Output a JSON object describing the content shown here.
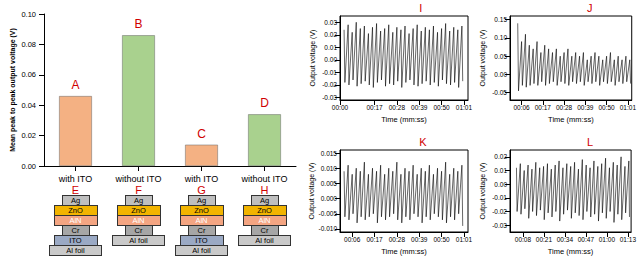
{
  "chart_data": [
    {
      "type": "bar",
      "y_label": "Mean peak to peak output voltage (V)",
      "categories": [
        "with ITO",
        "without ITO",
        "with ITO",
        "without ITO"
      ],
      "values": [
        0.046,
        0.086,
        0.014,
        0.034
      ],
      "colors": [
        "#f4b183",
        "#a9d18e",
        "#f4b183",
        "#a9d18e"
      ],
      "bar_letters": [
        "A",
        "B",
        "C",
        "D"
      ],
      "ylim": [
        0,
        0.1
      ],
      "yticks": [
        {
          "value": 0,
          "label": "0.00"
        },
        0.02,
        0.04,
        0.06,
        0.08,
        {
          "value": 0.1,
          "label": "0.10"
        }
      ],
      "grid": false
    },
    {
      "type": "line",
      "panel_label": "I",
      "x_label": "Time (mm:ss)",
      "y_label": "Output voltage (V)",
      "color": "#000000",
      "x": [
        2,
        2.4,
        4,
        4.4,
        6,
        6.4,
        8,
        8.4,
        10,
        10.4,
        12,
        12.4,
        14,
        14.4,
        16,
        16.4,
        18,
        18.4,
        20,
        20.4,
        22,
        22.4,
        24,
        24.4,
        26,
        26.4,
        28,
        28.4,
        30,
        30.4,
        32,
        32.4,
        34,
        34.4,
        36,
        36.4,
        38,
        38.4,
        40,
        40.4,
        42,
        42.4,
        44,
        44.4,
        46,
        46.4,
        48,
        48.4,
        50,
        50.4,
        52,
        52.4,
        54,
        54.4,
        56,
        56.4,
        58,
        58.4,
        60,
        60.4
      ],
      "values": [
        0.024,
        -0.018,
        0.028,
        -0.02,
        0.022,
        -0.016,
        0.03,
        -0.021,
        0.025,
        -0.019,
        0.027,
        -0.017,
        0.021,
        -0.02,
        0.026,
        -0.022,
        0.029,
        -0.018,
        0.023,
        -0.016,
        0.025,
        -0.021,
        0.028,
        -0.019,
        0.022,
        -0.02,
        0.026,
        -0.017,
        0.024,
        -0.022,
        0.027,
        -0.018,
        0.021,
        -0.016,
        0.025,
        -0.02,
        0.028,
        -0.021,
        0.023,
        -0.019,
        0.026,
        -0.017,
        0.024,
        -0.02,
        0.027,
        -0.018,
        0.022,
        -0.021,
        0.025,
        -0.016,
        0.029,
        -0.019,
        0.023,
        -0.02,
        0.026,
        -0.018,
        0.024,
        -0.022,
        0.027,
        -0.017
      ],
      "xlim": [
        0,
        63
      ],
      "xticks": [
        {
          "value": 0,
          "label": "00:00"
        },
        {
          "value": 17,
          "label": "00:17"
        },
        {
          "value": 28,
          "label": "00:28"
        },
        {
          "value": 39,
          "label": "00:39"
        },
        {
          "value": 50,
          "label": "00:50"
        },
        {
          "value": 61,
          "label": "01:01"
        }
      ],
      "ylim": [
        -0.032,
        0.035
      ],
      "yticks": [
        -0.03,
        -0.02,
        -0.01,
        {
          "value": 0,
          "label": "0.00"
        },
        0.01,
        0.02,
        0.03
      ],
      "grid": false
    },
    {
      "type": "line",
      "panel_label": "J",
      "x_label": "Time (mm:ss)",
      "y_label": "Output voltage (V)",
      "color": "#000000",
      "x": [
        4,
        4.4,
        6,
        6.4,
        8,
        8.4,
        10,
        10.4,
        12,
        12.4,
        14,
        14.4,
        16,
        16.4,
        18,
        18.4,
        20,
        20.4,
        22,
        22.4,
        24,
        24.4,
        26,
        26.4,
        28,
        28.4,
        30,
        30.4,
        32,
        32.4,
        34,
        34.4,
        36,
        36.4,
        38,
        38.4,
        40,
        40.4,
        42,
        42.4,
        44,
        44.4,
        46,
        46.4,
        48,
        48.4,
        50,
        50.4,
        52,
        52.4,
        54,
        54.4,
        56,
        56.4,
        58,
        58.4,
        60,
        60.4,
        62,
        62.4
      ],
      "values": [
        0.14,
        -0.045,
        0.09,
        -0.03,
        0.11,
        -0.035,
        0.08,
        -0.03,
        0.07,
        -0.025,
        0.09,
        -0.03,
        0.06,
        -0.02,
        0.08,
        -0.03,
        0.07,
        -0.025,
        0.06,
        -0.02,
        0.07,
        -0.03,
        0.05,
        -0.02,
        0.06,
        -0.025,
        0.07,
        -0.03,
        0.05,
        -0.02,
        0.06,
        -0.025,
        0.05,
        -0.02,
        0.06,
        -0.03,
        0.04,
        -0.02,
        0.05,
        -0.025,
        0.06,
        -0.02,
        0.05,
        -0.03,
        0.04,
        -0.02,
        0.05,
        -0.025,
        0.06,
        -0.02,
        0.04,
        -0.03,
        0.05,
        -0.02,
        0.04,
        -0.025,
        0.05,
        -0.02,
        0.04,
        -0.025
      ],
      "xlim": [
        0,
        63
      ],
      "xticks": [
        {
          "value": 6,
          "label": "00:06"
        },
        {
          "value": 17,
          "label": "00:17"
        },
        {
          "value": 28,
          "label": "00:28"
        },
        {
          "value": 39,
          "label": "00:39"
        },
        {
          "value": 50,
          "label": "00:50"
        },
        {
          "value": 61,
          "label": "01:01"
        }
      ],
      "ylim": [
        -0.07,
        0.16
      ],
      "yticks": [
        -0.05,
        {
          "value": 0,
          "label": "0.00"
        },
        0.05,
        {
          "value": 0.1,
          "label": "0.10"
        },
        0.15
      ],
      "grid": false
    },
    {
      "type": "line",
      "panel_label": "K",
      "x_label": "Time (mm:ss)",
      "y_label": "Output voltage (V)",
      "color": "#000000",
      "x": [
        2,
        2.4,
        4,
        4.4,
        6,
        6.4,
        8,
        8.4,
        10,
        10.4,
        12,
        12.4,
        14,
        14.4,
        16,
        16.4,
        18,
        18.4,
        20,
        20.4,
        22,
        22.4,
        24,
        24.4,
        26,
        26.4,
        28,
        28.4,
        30,
        30.4,
        32,
        32.4,
        34,
        34.4,
        36,
        36.4,
        38,
        38.4,
        40,
        40.4,
        42,
        42.4,
        44,
        44.4,
        46,
        46.4,
        48,
        48.4,
        50,
        50.4,
        52,
        52.4,
        54,
        54.4,
        56,
        56.4,
        58,
        58.4,
        60,
        60.4
      ],
      "values": [
        0.009,
        -0.006,
        0.011,
        -0.007,
        0.008,
        -0.005,
        0.01,
        -0.008,
        0.009,
        -0.006,
        0.012,
        -0.007,
        0.008,
        -0.006,
        0.01,
        -0.005,
        0.009,
        -0.008,
        0.011,
        -0.006,
        0.008,
        -0.007,
        0.01,
        -0.006,
        0.009,
        -0.005,
        0.012,
        -0.007,
        0.008,
        -0.008,
        0.01,
        -0.006,
        0.009,
        -0.007,
        0.011,
        -0.005,
        0.008,
        -0.006,
        0.01,
        -0.008,
        0.009,
        -0.006,
        0.011,
        -0.007,
        0.008,
        -0.005,
        0.01,
        -0.006,
        0.009,
        -0.007,
        0.012,
        -0.008,
        0.008,
        -0.006,
        0.01,
        -0.007,
        0.009,
        -0.005,
        0.011,
        -0.009
      ],
      "xlim": [
        0,
        63
      ],
      "xticks": [
        {
          "value": 6,
          "label": "00:06"
        },
        {
          "value": 17,
          "label": "00:17"
        },
        {
          "value": 28,
          "label": "00:28"
        },
        {
          "value": 39,
          "label": "00:39"
        },
        {
          "value": 50,
          "label": "00:50"
        },
        {
          "value": 61,
          "label": "01:01"
        }
      ],
      "ylim": [
        -0.011,
        0.016
      ],
      "yticks": [
        {
          "value": -0.01,
          "label": "-0.010"
        },
        -0.005,
        {
          "value": 0,
          "label": "0.000"
        },
        0.005,
        {
          "value": 0.01,
          "label": "0.010"
        },
        0.015
      ],
      "grid": false
    },
    {
      "type": "line",
      "panel_label": "L",
      "x_label": "Time (mm:ss)",
      "y_label": "Output voltage (V)",
      "color": "#000000",
      "x": [
        4,
        4.4,
        6.4,
        6.8,
        8.8,
        9.2,
        11.2,
        11.6,
        13.6,
        14,
        16,
        16.4,
        18.4,
        18.8,
        20.8,
        21.2,
        23.2,
        23.6,
        25.6,
        26,
        28,
        28.4,
        30.4,
        30.8,
        32.8,
        33.2,
        35.2,
        35.6,
        37.6,
        38,
        40,
        40.4,
        42.4,
        42.8,
        44.8,
        45.2,
        47.2,
        47.6,
        49.6,
        50,
        52,
        52.4,
        54.4,
        54.8,
        56.8,
        57.2,
        59.2,
        59.6,
        61.6,
        62,
        64,
        64.4,
        66.4,
        66.8,
        68.8,
        69.2,
        71.2,
        71.6,
        73.6,
        74
      ],
      "values": [
        0.012,
        -0.02,
        0.015,
        -0.022,
        0.01,
        -0.018,
        0.014,
        -0.025,
        0.011,
        -0.02,
        0.016,
        -0.023,
        0.012,
        -0.019,
        0.013,
        -0.026,
        0.015,
        -0.021,
        0.011,
        -0.024,
        0.014,
        -0.02,
        0.017,
        -0.027,
        0.012,
        -0.022,
        0.015,
        -0.019,
        0.013,
        -0.025,
        0.016,
        -0.021,
        0.011,
        -0.023,
        0.018,
        -0.026,
        0.014,
        -0.02,
        0.012,
        -0.024,
        0.017,
        -0.022,
        0.013,
        -0.027,
        0.015,
        -0.021,
        0.019,
        -0.025,
        0.012,
        -0.02,
        0.016,
        -0.028,
        0.014,
        -0.022,
        0.02,
        -0.026,
        0.013,
        -0.021,
        0.017,
        -0.024
      ],
      "xlim": [
        0,
        75
      ],
      "xticks": [
        {
          "value": 8,
          "label": "00:08"
        },
        {
          "value": 21,
          "label": "00:21"
        },
        {
          "value": 34,
          "label": "00:34"
        },
        {
          "value": 47,
          "label": "00:47"
        },
        {
          "value": 60,
          "label": "01:00"
        },
        {
          "value": 73,
          "label": "01:13"
        }
      ],
      "ylim": [
        -0.035,
        0.025
      ],
      "yticks": [
        -0.03,
        -0.02,
        -0.01,
        {
          "value": 0,
          "label": "0.00"
        },
        0.01,
        0.02
      ],
      "grid": false
    }
  ],
  "layer_stacks": [
    {
      "label": "E",
      "layers": [
        "Ag",
        "ZnO",
        "AlN",
        "Cr",
        "ITO",
        "Al foil"
      ]
    },
    {
      "label": "F",
      "layers": [
        "Ag",
        "ZnO",
        "AlN",
        "Cr",
        "Al foil"
      ]
    },
    {
      "label": "G",
      "layers": [
        "Ag",
        "ZnO",
        "AlN",
        "Cr",
        "ITO",
        "Al foil"
      ]
    },
    {
      "label": "H",
      "layers": [
        "Ag",
        "ZnO",
        "AlN",
        "Cr",
        "Al foil"
      ]
    }
  ]
}
